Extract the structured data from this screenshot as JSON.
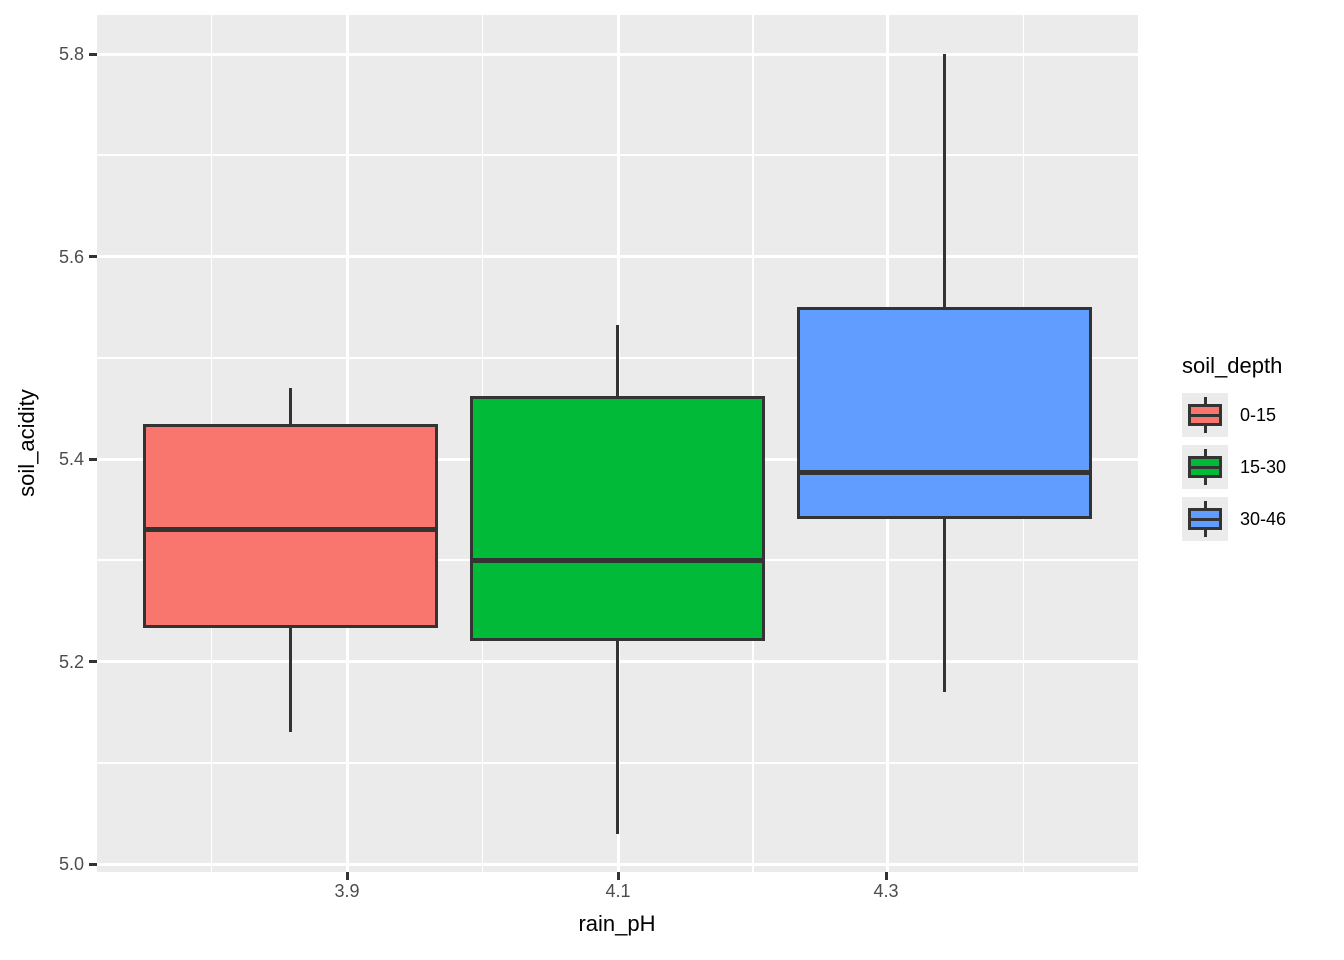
{
  "axes": {
    "x": {
      "title": "rain_pH",
      "tick_labels": [
        "3.9",
        "4.1",
        "4.3"
      ]
    },
    "y": {
      "title": "soil_acidity",
      "tick_labels": [
        "5.0",
        "5.2",
        "5.4",
        "5.6",
        "5.8"
      ],
      "tick_values": [
        5.0,
        5.2,
        5.4,
        5.6,
        5.8
      ]
    }
  },
  "legend": {
    "title": "soil_depth",
    "items": [
      {
        "label": "0-15",
        "color": "#F8766D"
      },
      {
        "label": "15-30",
        "color": "#00BA38"
      },
      {
        "label": "30-46",
        "color": "#619CFF"
      }
    ]
  },
  "colors": {
    "panel_background": "#EBEBEB",
    "gridline": "#FFFFFF",
    "box_outline": "#333333",
    "tick_mark": "#333333",
    "tick_text": "#4D4D4D",
    "fill_red": "#F8766D",
    "fill_green": "#00BA38",
    "fill_blue": "#619CFF"
  },
  "chart_data": {
    "type": "boxplot",
    "title": "",
    "xlabel": "rain_pH",
    "ylabel": "soil_acidity",
    "x_categories": [
      3.9,
      4.1,
      4.3
    ],
    "ylim": [
      4.99,
      5.85
    ],
    "y_ticks": [
      5.0,
      5.2,
      5.4,
      5.6,
      5.8
    ],
    "grid": true,
    "legend_position": "right",
    "legend_title": "soil_depth",
    "series": [
      {
        "name": "0-15",
        "x": 3.9,
        "color": "#F8766D",
        "whisker_low": 5.13,
        "q1": 5.233,
        "median": 5.33,
        "q3": 5.435,
        "whisker_high": 5.47
      },
      {
        "name": "15-30",
        "x": 4.1,
        "color": "#00BA38",
        "whisker_low": 5.03,
        "q1": 5.22,
        "median": 5.3,
        "q3": 5.462,
        "whisker_high": 5.532
      },
      {
        "name": "30-46",
        "x": 4.3,
        "color": "#619CFF",
        "whisker_low": 5.17,
        "q1": 5.341,
        "median": 5.387,
        "q3": 5.55,
        "whisker_high": 5.8
      }
    ]
  }
}
